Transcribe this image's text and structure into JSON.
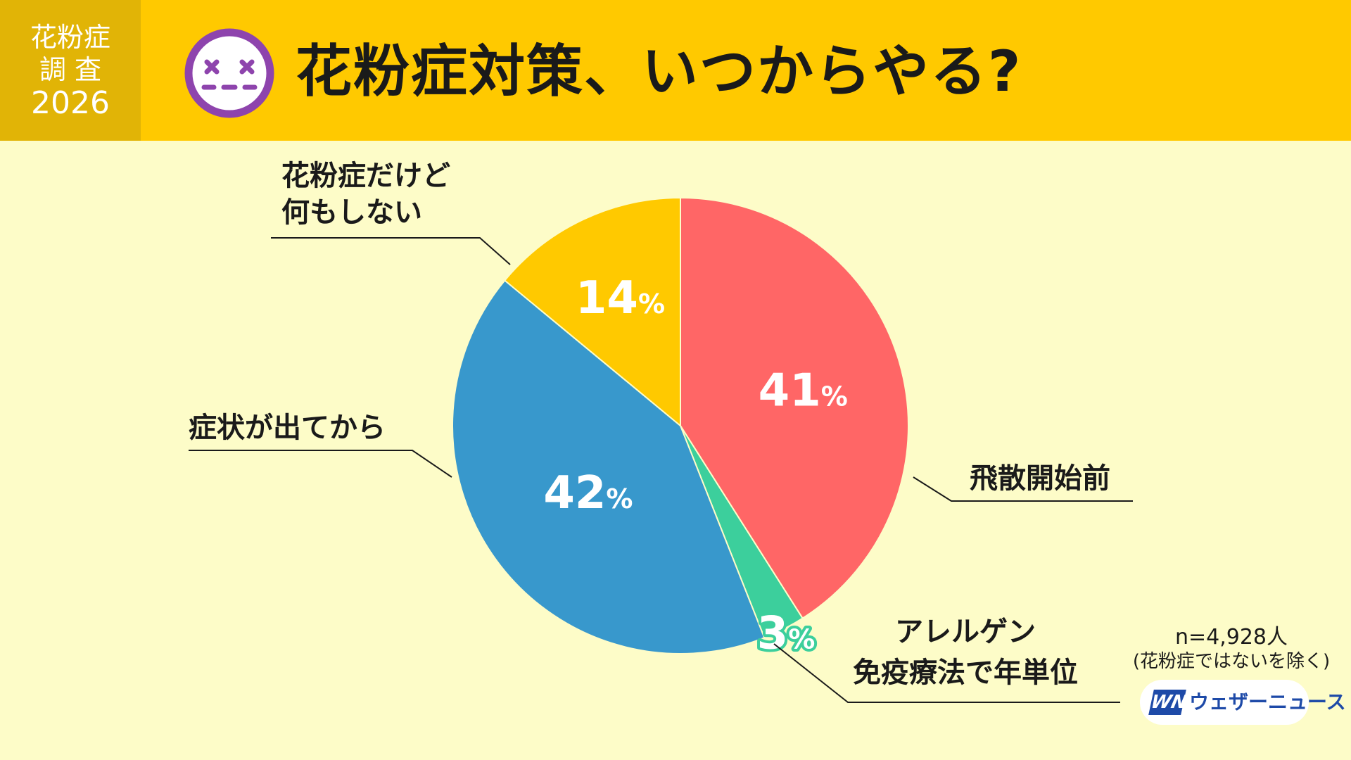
{
  "badge": {
    "line1": "花粉症",
    "line2": "調 査",
    "year": "2026"
  },
  "header": {
    "title": "花粉症対策、いつからやる?",
    "face_icon": "dizzy-face-icon"
  },
  "colors": {
    "header": "#ffc900",
    "badge": "#e1b406",
    "background": "#fdfcc8",
    "face": "#8e44ad"
  },
  "chart_data": {
    "type": "pie",
    "slices": [
      {
        "label": "飛散開始前",
        "value": 41,
        "display": "41",
        "color": "#ff6666"
      },
      {
        "label": "アレルゲン免疫療法で年単位",
        "value": 3,
        "display": "3",
        "color": "#3ccf9c"
      },
      {
        "label": "症状が出てから",
        "value": 42,
        "display": "42",
        "color": "#3898cc"
      },
      {
        "label": "花粉症だけど何もしない",
        "value": 14,
        "display": "14",
        "color": "#ffc900"
      }
    ],
    "unit": "%"
  },
  "labels": {
    "s0": [
      "飛散開始前"
    ],
    "s1": [
      "アレルゲン",
      "免疫療法で年単位"
    ],
    "s2": [
      "症状が出てから"
    ],
    "s3": [
      "花粉症だけど",
      "何もしない"
    ]
  },
  "note": {
    "n": "n=4,928人",
    "exclusion": "(花粉症ではないを除く)"
  },
  "logo": {
    "mark": "WN",
    "text": "ウェザーニュース"
  }
}
